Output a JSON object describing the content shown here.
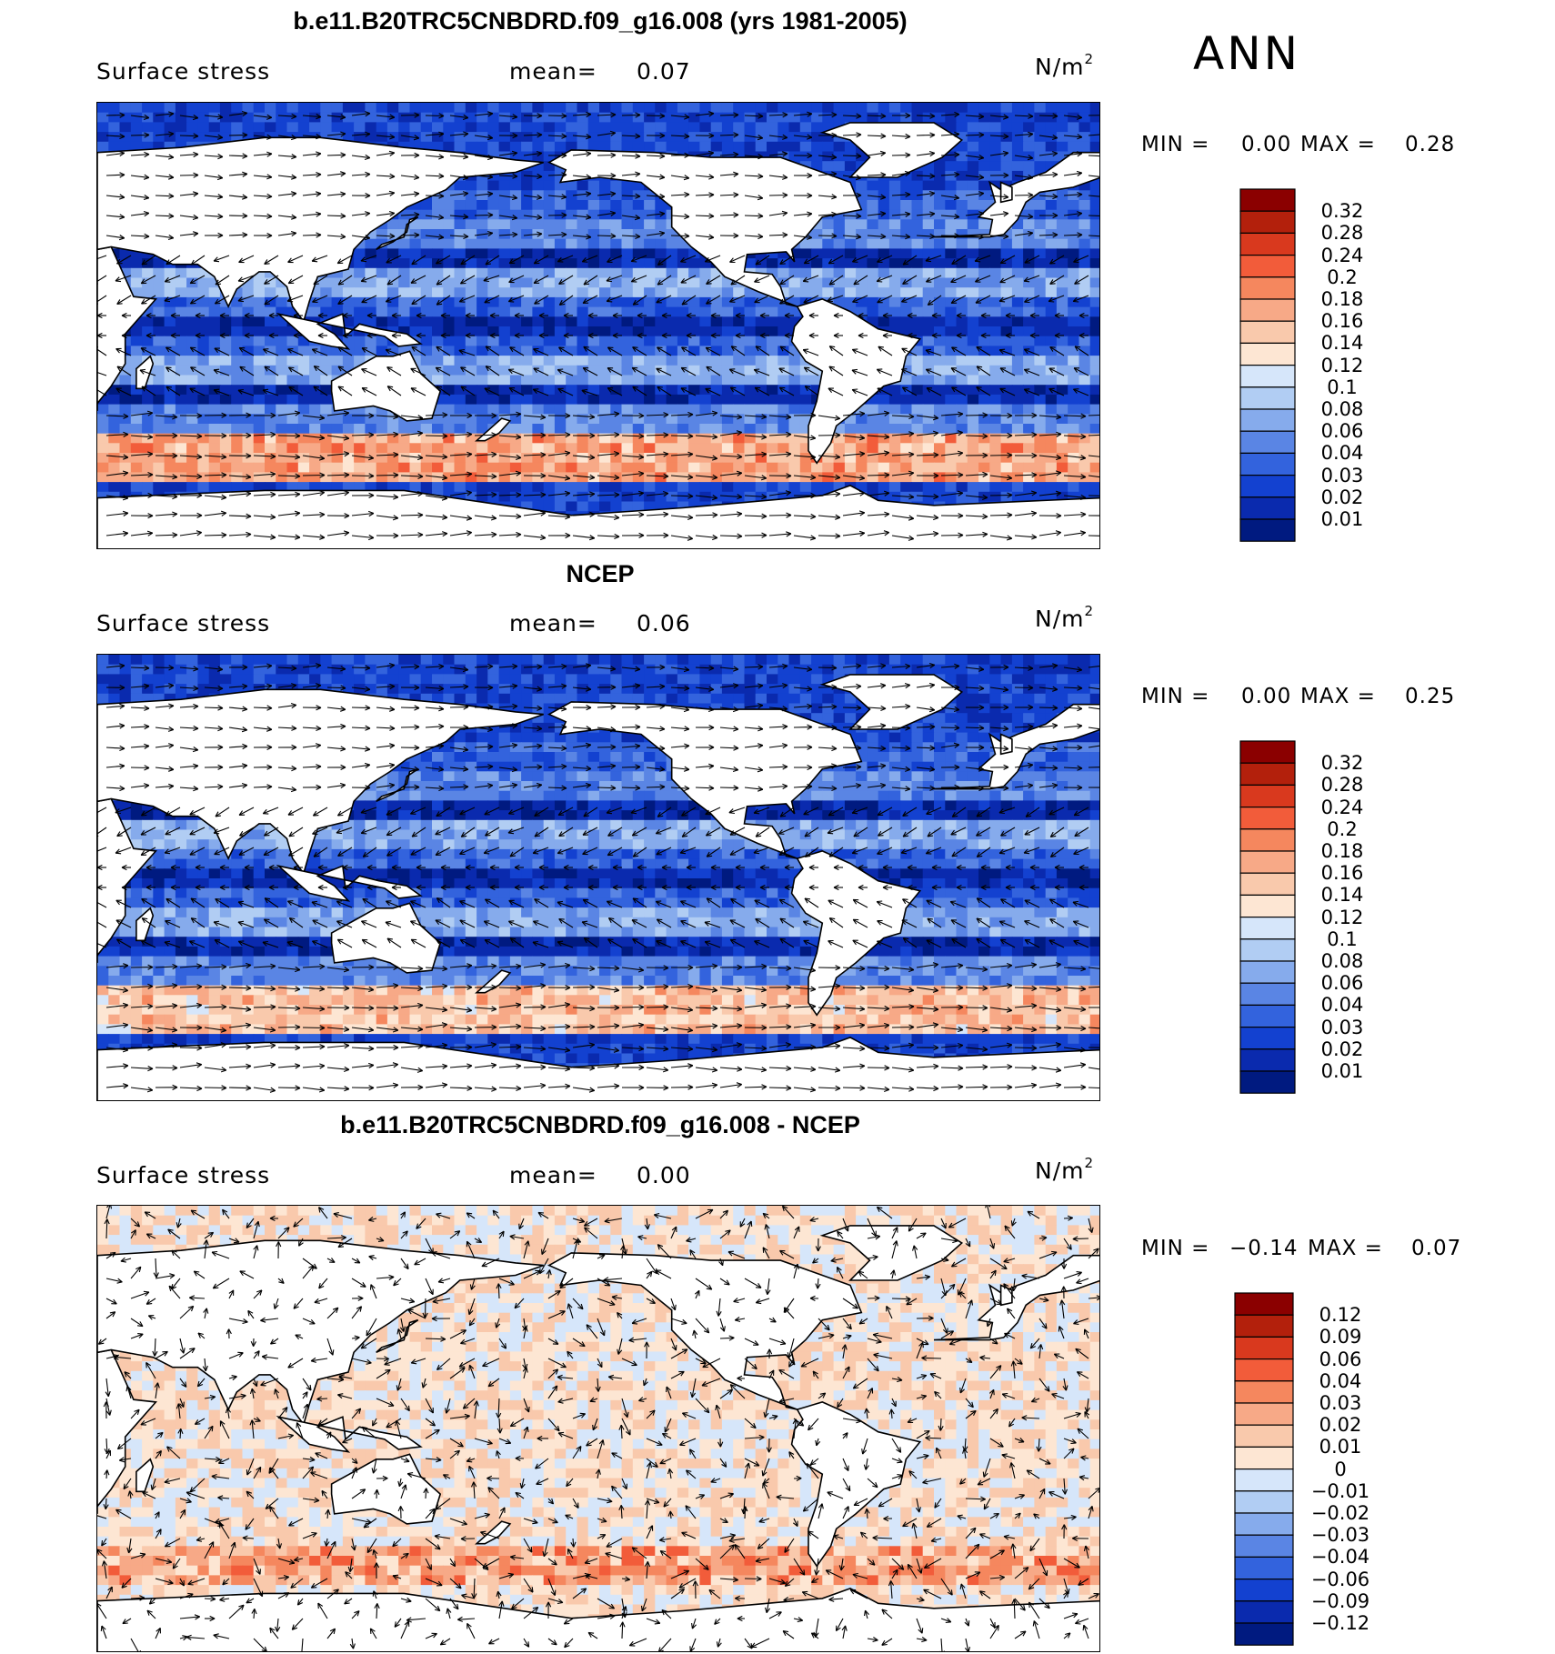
{
  "season": "ANN",
  "units": "N/m",
  "units_sup": "2",
  "panels": [
    {
      "title": "b.e11.B20TRC5CNBDRD.f09_g16.008 (yrs 1981-2005)",
      "variable": "Surface stress",
      "mean_label": "mean=",
      "mean_value": "0.07",
      "min_label": "MIN =",
      "min_value": "0.00",
      "max_label": "MAX =",
      "max_value": "0.28",
      "levels": [
        "0.32",
        "0.28",
        "0.24",
        "0.2",
        "0.18",
        "0.16",
        "0.14",
        "0.12",
        "0.1",
        "0.08",
        "0.06",
        "0.04",
        "0.03",
        "0.02",
        "0.01"
      ],
      "colors": [
        "#8b0000",
        "#b3200c",
        "#d9391e",
        "#f25c3a",
        "#f5875e",
        "#f7a987",
        "#f9c9ac",
        "#fde6d3",
        "#d6e6fa",
        "#b1cdf3",
        "#86abec",
        "#5a85e4",
        "#3363dd",
        "#1341d0",
        "#0a2aae",
        "#001a80"
      ]
    },
    {
      "title": "NCEP",
      "variable": "Surface stress",
      "mean_label": "mean=",
      "mean_value": "0.06",
      "min_label": "MIN =",
      "min_value": "0.00",
      "max_label": "MAX =",
      "max_value": "0.25",
      "levels": [
        "0.32",
        "0.28",
        "0.24",
        "0.2",
        "0.18",
        "0.16",
        "0.14",
        "0.12",
        "0.1",
        "0.08",
        "0.06",
        "0.04",
        "0.03",
        "0.02",
        "0.01"
      ],
      "colors": [
        "#8b0000",
        "#b3200c",
        "#d9391e",
        "#f25c3a",
        "#f5875e",
        "#f7a987",
        "#f9c9ac",
        "#fde6d3",
        "#d6e6fa",
        "#b1cdf3",
        "#86abec",
        "#5a85e4",
        "#3363dd",
        "#1341d0",
        "#0a2aae",
        "#001a80"
      ]
    },
    {
      "title": "b.e11.B20TRC5CNBDRD.f09_g16.008 - NCEP",
      "variable": "Surface stress",
      "mean_label": "mean=",
      "mean_value": "0.00",
      "min_label": "MIN =",
      "min_value": "−0.14",
      "max_label": "MAX =",
      "max_value": "0.07",
      "levels": [
        "0.12",
        "0.09",
        "0.06",
        "0.04",
        "0.03",
        "0.02",
        "0.01",
        "0",
        "−0.01",
        "−0.02",
        "−0.03",
        "−0.04",
        "−0.06",
        "−0.09",
        "−0.12"
      ],
      "colors": [
        "#8b0000",
        "#b3200c",
        "#d9391e",
        "#f25c3a",
        "#f5875e",
        "#f7a987",
        "#f9c9ac",
        "#fde6d3",
        "#d6e6fa",
        "#b1cdf3",
        "#86abec",
        "#5a85e4",
        "#3363dd",
        "#1341d0",
        "#0a2aae",
        "#001a80"
      ]
    }
  ],
  "chart_data": [
    {
      "type": "heatmap",
      "title": "b.e11.B20TRC5CNBDRD.f09_g16.008 (yrs 1981-2005)",
      "variable": "Surface stress",
      "units": "N/m2",
      "mean": 0.07,
      "min": 0.0,
      "max": 0.28,
      "contour_levels": [
        0.01,
        0.02,
        0.03,
        0.04,
        0.06,
        0.08,
        0.1,
        0.12,
        0.14,
        0.16,
        0.18,
        0.2,
        0.24,
        0.28,
        0.32
      ],
      "features": "global map with wind-stress vectors; strongest stress (0.18-0.28) in Southern Ocean westerlies band, weak (<0.04) in equatorial regions"
    },
    {
      "type": "heatmap",
      "title": "NCEP",
      "variable": "Surface stress",
      "units": "N/m2",
      "mean": 0.06,
      "min": 0.0,
      "max": 0.25,
      "contour_levels": [
        0.01,
        0.02,
        0.03,
        0.04,
        0.06,
        0.08,
        0.1,
        0.12,
        0.14,
        0.16,
        0.18,
        0.2,
        0.24,
        0.28,
        0.32
      ]
    },
    {
      "type": "heatmap",
      "title": "b.e11.B20TRC5CNBDRD.f09_g16.008 - NCEP",
      "variable": "Surface stress",
      "units": "N/m2",
      "mean": 0.0,
      "min": -0.14,
      "max": 0.07,
      "contour_levels": [
        -0.12,
        -0.09,
        -0.06,
        -0.04,
        -0.03,
        -0.02,
        -0.01,
        0,
        0.01,
        0.02,
        0.03,
        0.04,
        0.06,
        0.09,
        0.12
      ]
    }
  ]
}
